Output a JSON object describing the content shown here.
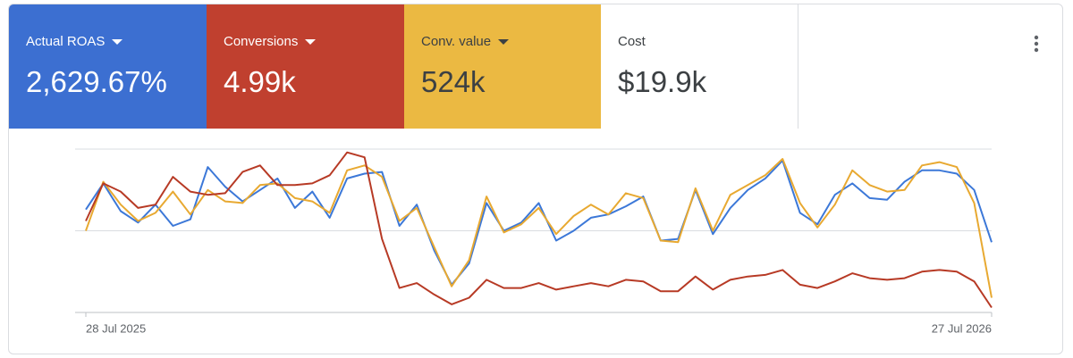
{
  "metric_cards": [
    {
      "label": "Actual ROAS",
      "value": "2,629.67%",
      "color": "#3c6fd1"
    },
    {
      "label": "Conversions",
      "value": "4.99k",
      "color": "#c0402f"
    },
    {
      "label": "Conv. value",
      "value": "524k",
      "color": "#ebb942"
    },
    {
      "label": "Cost",
      "value": "$19.9k",
      "color": "#ffffff"
    }
  ],
  "chart_data": {
    "type": "line",
    "categories": [
      "28 Jul 2025",
      null,
      null,
      null,
      null,
      null,
      null,
      null,
      null,
      null,
      null,
      null,
      null,
      null,
      null,
      null,
      null,
      null,
      null,
      null,
      null,
      null,
      null,
      null,
      null,
      null,
      null,
      null,
      null,
      null,
      null,
      null,
      null,
      null,
      null,
      null,
      null,
      null,
      null,
      null,
      null,
      null,
      null,
      null,
      null,
      null,
      null,
      null,
      null,
      null,
      null,
      null,
      "27 Jul 2026"
    ],
    "ylim": [
      0,
      100
    ],
    "yticks": [
      0,
      50,
      100
    ],
    "grid": true,
    "series": [
      {
        "color": "#3c78d8",
        "values": [
          63,
          79,
          62,
          55,
          66,
          53,
          57,
          89,
          77,
          68,
          75,
          82,
          64,
          74,
          58,
          82,
          85,
          86,
          53,
          66,
          38,
          17,
          30,
          67,
          50,
          55,
          67,
          44,
          50,
          58,
          60,
          65,
          71,
          44,
          45,
          75,
          48,
          64,
          75,
          82,
          93,
          61,
          54,
          72,
          79,
          70,
          69,
          80,
          87,
          87,
          85,
          75,
          43
        ]
      },
      {
        "color": "#e8a931",
        "values": [
          50,
          80,
          66,
          56,
          61,
          74,
          60,
          75,
          68,
          67,
          78,
          79,
          70,
          68,
          61,
          87,
          90,
          83,
          56,
          64,
          40,
          16,
          32,
          71,
          49,
          54,
          64,
          48,
          59,
          66,
          60,
          73,
          70,
          44,
          43,
          76,
          50,
          72,
          78,
          84,
          94,
          67,
          52,
          66,
          87,
          78,
          74,
          75,
          90,
          92,
          89,
          67,
          9
        ]
      },
      {
        "color": "#b73a25",
        "values": [
          56,
          79,
          74,
          64,
          66,
          83,
          74,
          72,
          73,
          86,
          90,
          78,
          78,
          79,
          84,
          98,
          95,
          45,
          15,
          18,
          11,
          5,
          9,
          20,
          15,
          15,
          18,
          14,
          16,
          18,
          16,
          20,
          19,
          13,
          13,
          22,
          14,
          20,
          22,
          23,
          26,
          17,
          15,
          19,
          24,
          21,
          20,
          21,
          25,
          26,
          25,
          19,
          3
        ]
      }
    ]
  }
}
